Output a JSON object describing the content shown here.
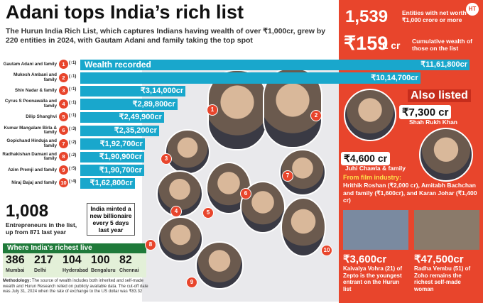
{
  "header": {
    "title": "Adani tops India’s rich list",
    "subtitle": "The Hurun India Rich List, which captures Indians having wealth of over ₹1,000cr, grew by 220 entities in 2024, with Gautam Adani and family taking the top spot",
    "logo": "HT"
  },
  "chart_data": {
    "type": "hbar",
    "annotation": "Wealth recorded",
    "color": "#19a7cc",
    "categories": [
      "Gautam Adani and family",
      "Mukesh Ambani and family",
      "Shiv Nadar & family",
      "Cyrus S Poonawalla and family",
      "Dilip Shanghvi",
      "Kumar Mangalam Birla & family",
      "Gopichand Hinduja and family",
      "Radhakishan Damani and family",
      "Azim Premji and family",
      "Niraj Bajaj and family"
    ],
    "ranks": [
      "1",
      "2",
      "3",
      "4",
      "5",
      "6",
      "7",
      "8",
      "9",
      "10"
    ],
    "rank_changes": [
      "(↑1)",
      "(↓1)",
      "(↑1)",
      "(↑1)",
      "(↑1)",
      "(↑3)",
      "(↑2)",
      "(↓2)",
      "(↑5)",
      "(↑4)"
    ],
    "values": [
      1161800,
      1014700,
      314000,
      289800,
      249900,
      235200,
      192700,
      190900,
      190700,
      162800
    ],
    "value_labels": [
      "₹11,61,800cr",
      "₹10,14,700cr",
      "₹3,14,000cr",
      "₹2,89,800cr",
      "₹2,49,900cr",
      "₹2,35,200cr",
      "₹1,92,700cr",
      "₹1,90,900cr",
      "₹1,90,700cr",
      "₹1,62,800cr"
    ]
  },
  "stats": {
    "entities": "1,539",
    "entities_text": "Entities with net worth of ₹1,000 crore or more",
    "wealth": "₹159",
    "wealth_unit": "L cr",
    "wealth_text": "Cumulative wealth of those on the list",
    "entrepreneurs": "1,008",
    "entrepreneurs_text": "Entrepreneurs in the list, up from 871 last year",
    "billionaire": "India minted a new billionaire every 5 days last year"
  },
  "also_listed": {
    "title": "Also listed",
    "srk_value": "₹7,300 cr",
    "srk_name": "Shah Rukh Khan",
    "juhi_value": "₹4,600 cr",
    "juhi_name": "Juhi Chawla & family",
    "film_title": "From film industry:",
    "film_text": "Hrithik Roshan (₹2,000 cr), Amitabh Bachchan and family (₹1,600cr), and Karan Johar (₹1,400 cr)",
    "kaivalya_value": "₹3,600cr",
    "kaivalya_text": "Kaivalya Vohra (21) of Zepto is the youngest entrant on the Hurun list",
    "radha_value": "₹47,500cr",
    "radha_text": "Radha Vembu (51) of Zoho remains the richest self-made woman"
  },
  "cities": {
    "title": "Where India’s richest live",
    "items": [
      {
        "count": "386",
        "city": "Mumbai"
      },
      {
        "count": "217",
        "city": "Delhi"
      },
      {
        "count": "104",
        "city": "Hyderabad"
      },
      {
        "count": "100",
        "city": "Bengaluru"
      },
      {
        "count": "82",
        "city": "Chennai"
      }
    ]
  },
  "methodology": {
    "label": "Methodology:",
    "text": "The source of wealth includes both inherited and self-made wealth and Hurun Research relied on publicly available data. The cut-off date was July 31, 2024 when the rate of exchange to the US dollar was ₹83.32"
  }
}
